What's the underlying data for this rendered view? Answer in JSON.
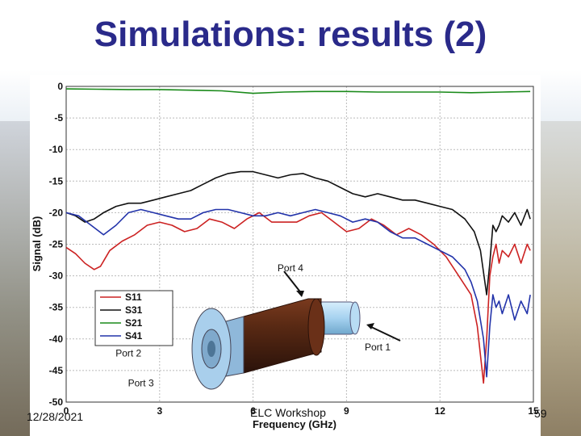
{
  "slide": {
    "title": "Simulations: results (2)",
    "footer_date": "12/28/2021",
    "footer_center": "ELC Workshop",
    "page_number": "59"
  },
  "chart_data": {
    "type": "line",
    "title": "",
    "xlabel": "Frequency (GHz)",
    "ylabel": "Signal (dB)",
    "xlim": [
      0,
      15
    ],
    "ylim": [
      -50,
      0
    ],
    "xticks": [
      0,
      3,
      6,
      9,
      12,
      15
    ],
    "yticks": [
      0,
      -5,
      -10,
      -15,
      -20,
      -25,
      -30,
      -35,
      -40,
      -45,
      -50
    ],
    "grid": true,
    "legend_position": "bottom-left",
    "series": [
      {
        "name": "S11",
        "color": "#cc2222",
        "x": [
          0,
          0.3,
          0.6,
          0.9,
          1.1,
          1.4,
          1.8,
          2.2,
          2.6,
          3,
          3.4,
          3.8,
          4.2,
          4.6,
          5,
          5.4,
          5.8,
          6.2,
          6.6,
          7,
          7.4,
          7.8,
          8.2,
          8.6,
          9,
          9.4,
          9.8,
          10.2,
          10.6,
          11,
          11.4,
          11.8,
          12.2,
          12.6,
          13,
          13.2,
          13.4,
          13.5,
          13.6,
          13.7,
          13.8,
          13.9,
          14,
          14.2,
          14.4,
          14.6,
          14.8,
          14.9
        ],
        "y": [
          -25.5,
          -26.5,
          -28,
          -29,
          -28.5,
          -26,
          -24.5,
          -23.5,
          -22,
          -21.5,
          -22,
          -23,
          -22.5,
          -21,
          -21.5,
          -22.5,
          -21,
          -20,
          -21.5,
          -21.5,
          -21.5,
          -20.5,
          -20,
          -21.5,
          -23,
          -22.5,
          -21,
          -22,
          -23.5,
          -22.5,
          -23.5,
          -25,
          -27,
          -30,
          -33,
          -38,
          -47,
          -40,
          -30,
          -27,
          -25,
          -28,
          -26,
          -27,
          -25,
          -28,
          -25,
          -26
        ]
      },
      {
        "name": "S31",
        "color": "#111111",
        "x": [
          0,
          0.3,
          0.6,
          0.9,
          1.2,
          1.6,
          2,
          2.4,
          2.8,
          3.2,
          3.6,
          4,
          4.4,
          4.8,
          5.2,
          5.6,
          6,
          6.4,
          6.8,
          7.2,
          7.6,
          8,
          8.4,
          8.8,
          9.2,
          9.6,
          10,
          10.4,
          10.8,
          11.2,
          11.6,
          12,
          12.4,
          12.8,
          13.1,
          13.3,
          13.5,
          13.6,
          13.7,
          13.8,
          13.9,
          14,
          14.2,
          14.4,
          14.6,
          14.8,
          14.9
        ],
        "y": [
          -20,
          -20.5,
          -21.5,
          -21,
          -20,
          -19,
          -18.5,
          -18.5,
          -18,
          -17.5,
          -17,
          -16.5,
          -15.5,
          -14.5,
          -13.8,
          -13.5,
          -13.5,
          -14,
          -14.5,
          -14,
          -13.8,
          -14.5,
          -15,
          -16,
          -17,
          -17.5,
          -17,
          -17.5,
          -18,
          -18,
          -18.5,
          -19,
          -19.5,
          -21,
          -23,
          -26,
          -33,
          -28,
          -22,
          -23,
          -22,
          -20.5,
          -21.5,
          -20,
          -22,
          -19.5,
          -21
        ]
      },
      {
        "name": "S21",
        "color": "#1a8a1a",
        "x": [
          0,
          1,
          2,
          3,
          4,
          5,
          6,
          7,
          8,
          9,
          10,
          11,
          12,
          13,
          14,
          14.9
        ],
        "y": [
          -0.4,
          -0.45,
          -0.5,
          -0.5,
          -0.6,
          -0.7,
          -1.1,
          -0.9,
          -0.8,
          -0.8,
          -0.9,
          -0.9,
          -0.9,
          -1,
          -0.9,
          -0.8
        ]
      },
      {
        "name": "S41",
        "color": "#2233aa",
        "x": [
          0,
          0.4,
          0.8,
          1.2,
          1.6,
          2,
          2.4,
          2.8,
          3.2,
          3.6,
          4,
          4.4,
          4.8,
          5.2,
          5.6,
          6,
          6.4,
          6.8,
          7.2,
          7.6,
          8,
          8.4,
          8.8,
          9.2,
          9.6,
          10,
          10.4,
          10.8,
          11.2,
          11.6,
          12,
          12.4,
          12.8,
          13,
          13.2,
          13.4,
          13.5,
          13.6,
          13.7,
          13.8,
          13.9,
          14,
          14.2,
          14.4,
          14.6,
          14.8,
          14.9
        ],
        "y": [
          -20,
          -20.5,
          -22,
          -23.5,
          -22,
          -20,
          -19.5,
          -20,
          -20.5,
          -21,
          -21,
          -20,
          -19.5,
          -19.5,
          -20,
          -20.5,
          -20.5,
          -20,
          -20.5,
          -20,
          -19.5,
          -20,
          -20.5,
          -21.5,
          -21,
          -21.5,
          -23,
          -24,
          -24,
          -25,
          -26,
          -27,
          -29,
          -31,
          -34,
          -40,
          -46,
          -38,
          -33,
          -35,
          -34,
          -36,
          -33,
          -37,
          -34,
          -36,
          -33
        ]
      }
    ],
    "annotations": [
      {
        "text": "Port 4",
        "x": 7.2,
        "y": -29.3
      },
      {
        "text": "Port 2",
        "x": 2.0,
        "y": -42.8
      },
      {
        "text": "Port 1",
        "x": 10.0,
        "y": -41.8
      },
      {
        "text": "Port 3",
        "x": 2.4,
        "y": -47.5
      }
    ]
  }
}
